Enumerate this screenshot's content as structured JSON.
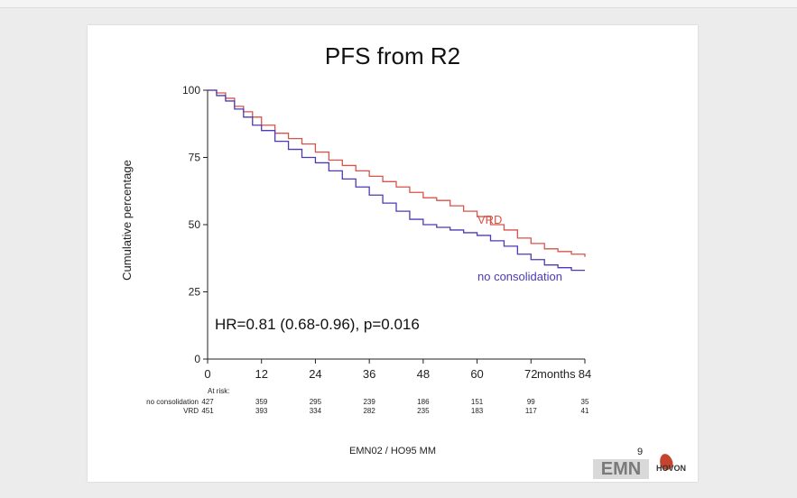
{
  "slide": {
    "title": "PFS from R2",
    "footer": "EMN02 / HO95 MM",
    "page_number": "9",
    "logo_text": "EMN",
    "logo2_text": "HOVON"
  },
  "chart_data": {
    "type": "line",
    "title": "PFS from R2",
    "xlabel": "months",
    "ylabel": "Cumulative percentage",
    "xlim": [
      0,
      84
    ],
    "ylim": [
      0,
      100
    ],
    "xticks": [
      "0",
      "12",
      "24",
      "36",
      "48",
      "60",
      "72",
      "84"
    ],
    "yticks": [
      "0",
      "25",
      "50",
      "75",
      "100"
    ],
    "grid": false,
    "colors": {
      "VRD": "#d9534a",
      "no consolidation": "#4b3bb5"
    },
    "series": [
      {
        "name": "VRD",
        "x": [
          0,
          2,
          4,
          6,
          8,
          10,
          12,
          15,
          18,
          21,
          24,
          27,
          30,
          33,
          36,
          39,
          42,
          45,
          48,
          51,
          54,
          57,
          60,
          63,
          66,
          69,
          72,
          75,
          78,
          81,
          84
        ],
        "y": [
          100,
          99,
          97,
          94,
          92,
          90,
          87,
          84,
          82,
          80,
          77,
          74,
          72,
          70,
          68,
          66,
          64,
          62,
          60,
          59,
          57,
          55,
          53,
          50,
          48,
          45,
          43,
          41,
          40,
          39,
          38
        ]
      },
      {
        "name": "no consolidation",
        "x": [
          0,
          2,
          4,
          6,
          8,
          10,
          12,
          15,
          18,
          21,
          24,
          27,
          30,
          33,
          36,
          39,
          42,
          45,
          48,
          51,
          54,
          57,
          60,
          63,
          66,
          69,
          72,
          75,
          78,
          81,
          84
        ],
        "y": [
          100,
          98,
          96,
          93,
          90,
          87,
          85,
          81,
          78,
          75,
          73,
          70,
          67,
          64,
          61,
          58,
          55,
          52,
          50,
          49,
          48,
          47,
          46,
          44,
          42,
          39,
          37,
          35,
          34,
          33,
          33
        ]
      }
    ],
    "series_labels": [
      "VRD",
      "no consolidation"
    ],
    "annotation": "HR=0.81 (0.68-0.96), p=0.016",
    "at_risk": {
      "header": "At risk:",
      "rows": [
        {
          "label": "no consolidation",
          "values": [
            "427",
            "359",
            "295",
            "239",
            "186",
            "151",
            "99",
            "35"
          ]
        },
        {
          "label": "VRD",
          "values": [
            "451",
            "393",
            "334",
            "282",
            "235",
            "183",
            "117",
            "41"
          ]
        }
      ]
    }
  }
}
